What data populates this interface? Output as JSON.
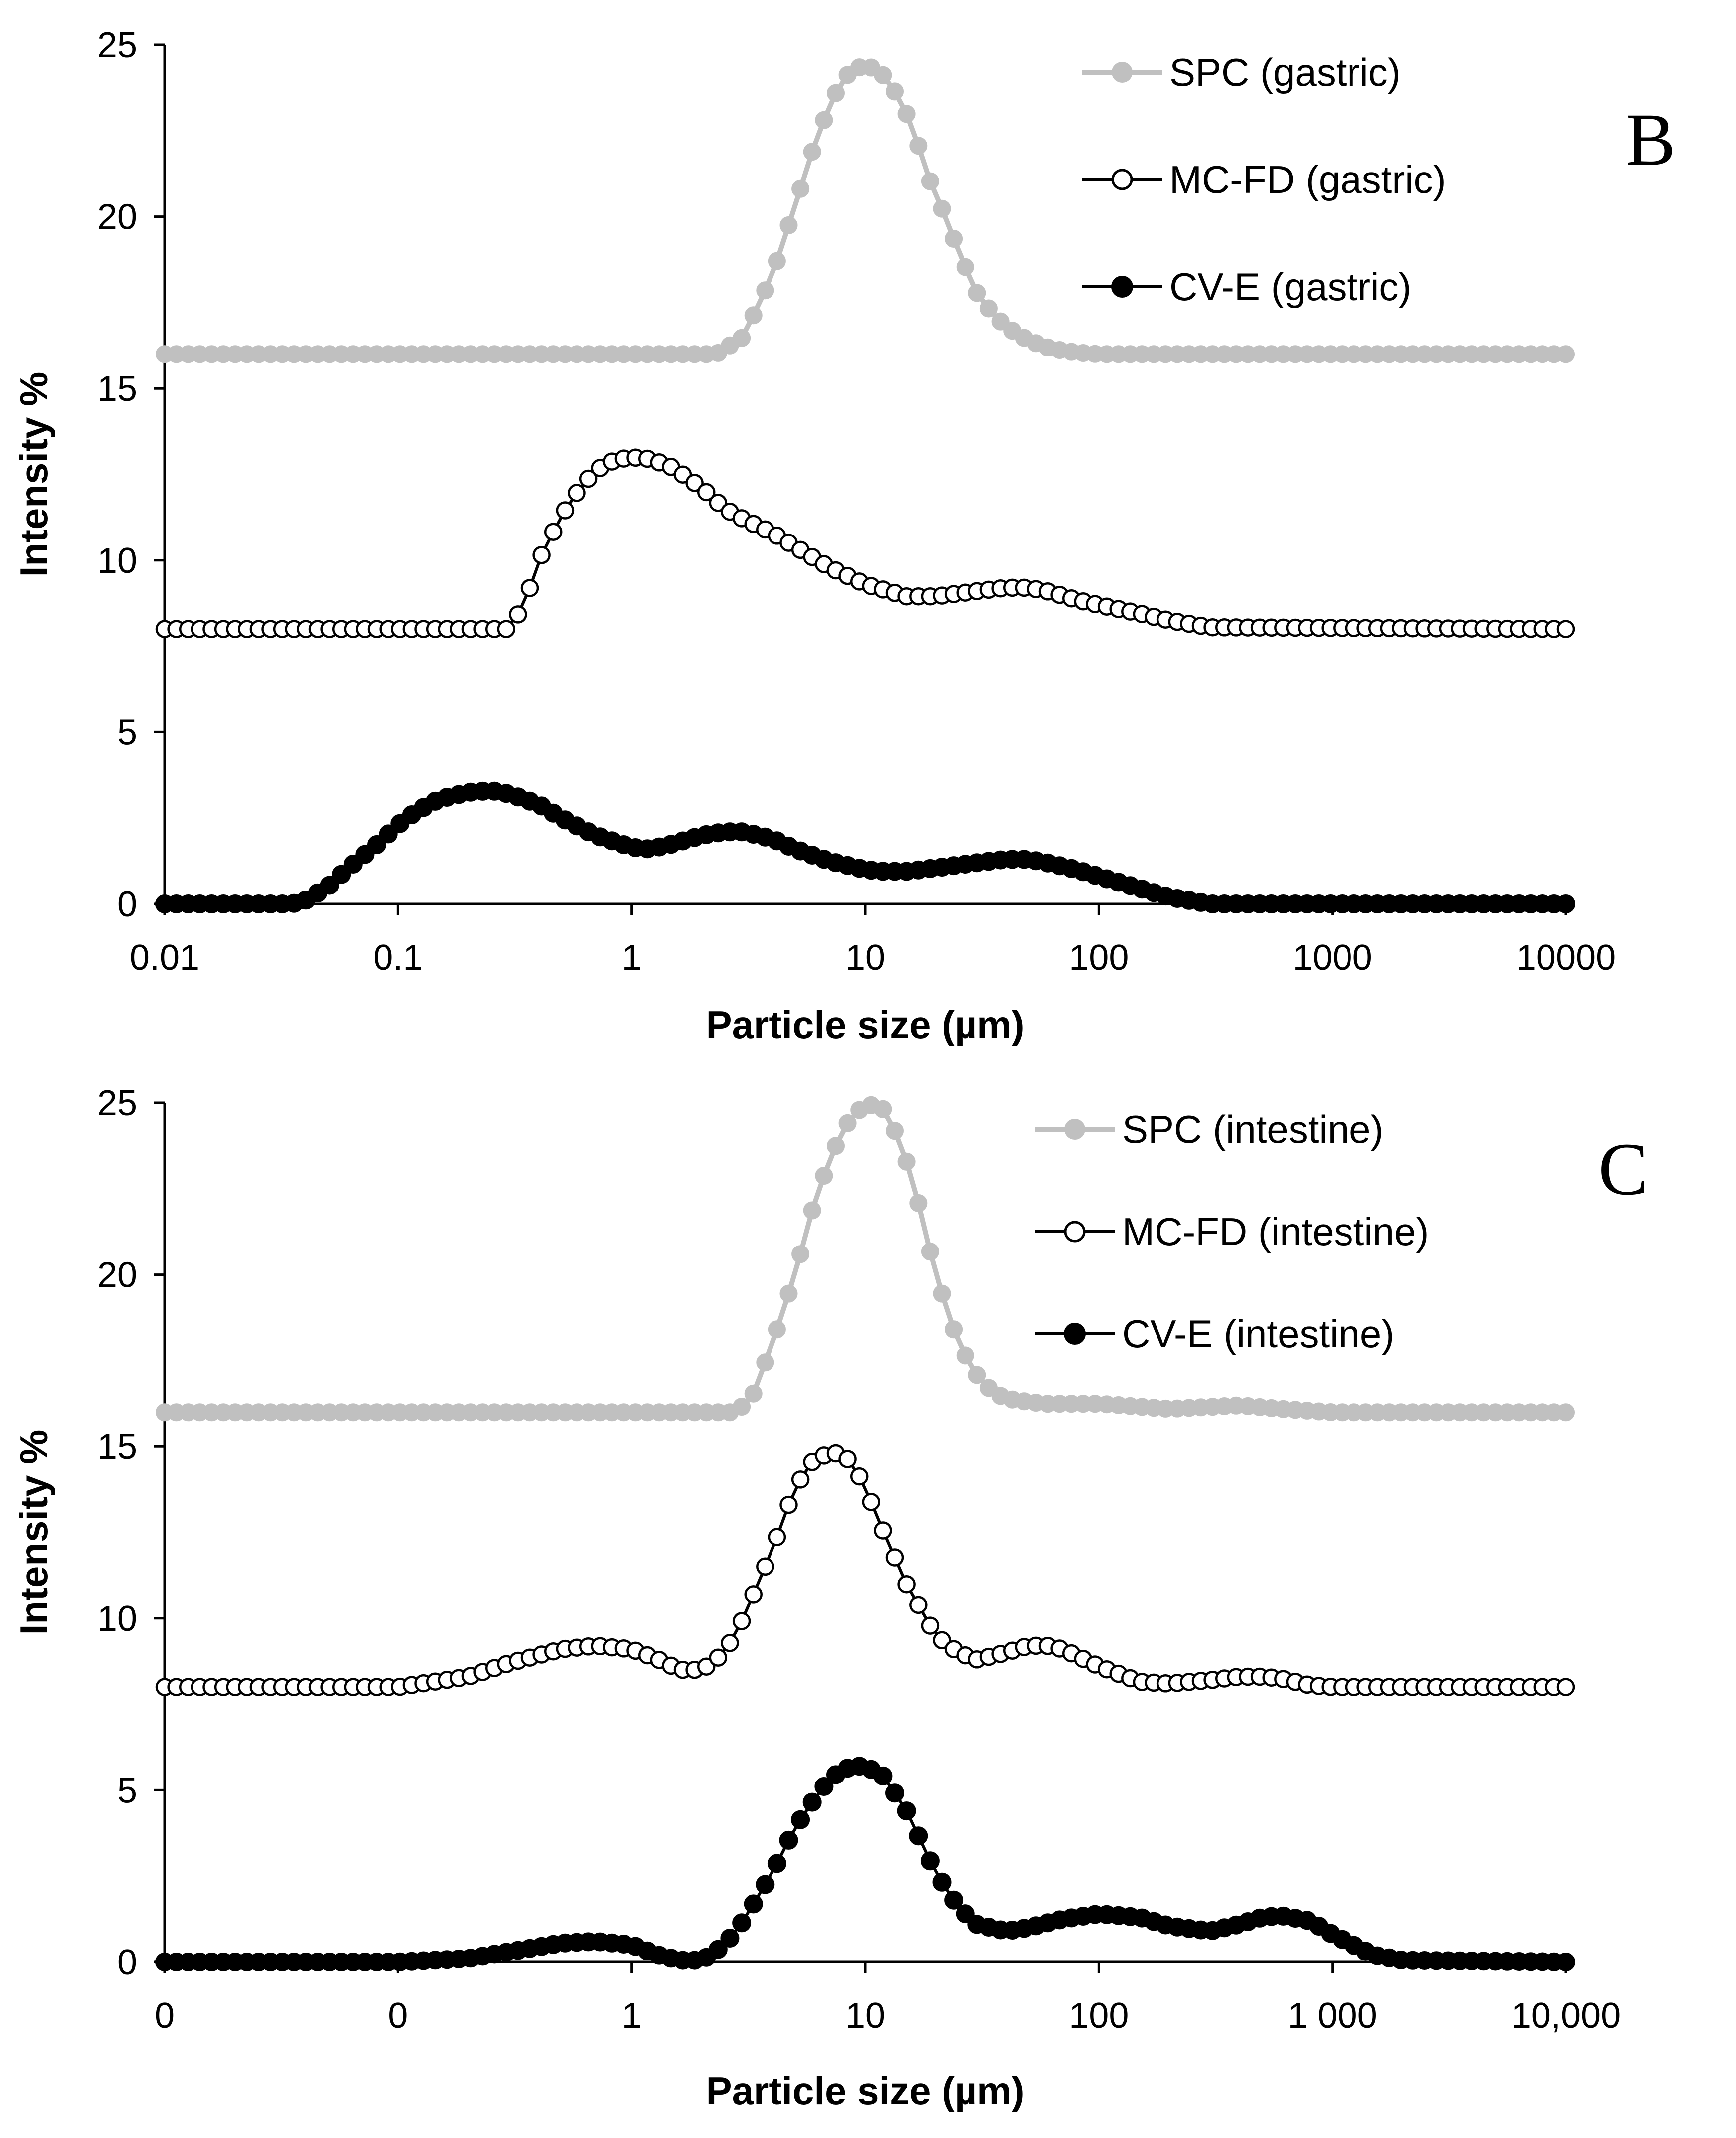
{
  "chart_data": [
    {
      "type": "line",
      "panel": "B",
      "title": "",
      "xlabel": "Particle size (µm)",
      "ylabel": "Intensity %",
      "xscale": "log",
      "xlim": [
        0.01,
        10000
      ],
      "ylim": [
        0,
        25
      ],
      "xticks": [
        0.01,
        0.1,
        1,
        10,
        100,
        1000,
        10000
      ],
      "xtick_labels": [
        "0.01",
        "0.1",
        "1",
        "10",
        "100",
        "1000",
        "10000"
      ],
      "yticks": [
        0,
        5,
        10,
        15,
        20,
        25
      ],
      "ytick_labels": [
        "0",
        "5",
        "10",
        "15",
        "20",
        "25"
      ],
      "legend_position": "top-right",
      "series": [
        {
          "name": "SPC (gastric)",
          "style": "gray-filled",
          "color": "#c0c0c0",
          "baseline": 16,
          "x": [
            0.01,
            2.3,
            3,
            4,
            5,
            6,
            7,
            8,
            9,
            10,
            11,
            12,
            13,
            15,
            17,
            19,
            22,
            25,
            30,
            35,
            40,
            50,
            60,
            70,
            80,
            90,
            100,
            10000
          ],
          "y": [
            16,
            16,
            16.5,
            18.3,
            20.3,
            22,
            23.2,
            24,
            24.3,
            24.4,
            24.3,
            24.1,
            23.8,
            23,
            22,
            21,
            20,
            19,
            17.8,
            17.2,
            16.8,
            16.4,
            16.2,
            16.1,
            16.05,
            16.02,
            16,
            16
          ]
        },
        {
          "name": "MC-FD (gastric)",
          "style": "open-circle",
          "color": "#000000",
          "baseline": 8,
          "x": [
            0.01,
            0.3,
            0.35,
            0.4,
            0.5,
            0.6,
            0.7,
            0.8,
            0.9,
            1,
            1.2,
            1.5,
            2,
            2.5,
            3,
            4,
            5,
            7,
            10,
            15,
            20,
            30,
            40,
            50,
            60,
            80,
            100,
            150,
            200,
            300,
            10000
          ],
          "y": [
            8,
            8,
            8.8,
            10,
            11.3,
            12.1,
            12.6,
            12.85,
            12.95,
            13,
            12.95,
            12.7,
            12.1,
            11.5,
            11.2,
            10.8,
            10.4,
            9.8,
            9.3,
            8.95,
            8.95,
            9.1,
            9.2,
            9.2,
            9.1,
            8.85,
            8.7,
            8.45,
            8.25,
            8.05,
            8
          ]
        },
        {
          "name": "CV-E (gastric)",
          "style": "filled-circle",
          "color": "#000000",
          "baseline": 0,
          "x": [
            0.01,
            0.035,
            0.04,
            0.05,
            0.06,
            0.08,
            0.1,
            0.12,
            0.15,
            0.2,
            0.25,
            0.3,
            0.4,
            0.5,
            0.7,
            1,
            1.2,
            1.5,
            2,
            2.5,
            3,
            4,
            5,
            7,
            10,
            12,
            15,
            20,
            30,
            40,
            50,
            60,
            80,
            100,
            150,
            200,
            300,
            10000
          ],
          "y": [
            0,
            0,
            0.1,
            0.5,
            1,
            1.7,
            2.3,
            2.7,
            3.05,
            3.25,
            3.3,
            3.2,
            2.9,
            2.5,
            2.0,
            1.65,
            1.6,
            1.75,
            2.0,
            2.1,
            2.1,
            1.9,
            1.6,
            1.25,
            1.0,
            0.95,
            0.95,
            1.05,
            1.2,
            1.3,
            1.3,
            1.2,
            1.0,
            0.8,
            0.45,
            0.2,
            0,
            0
          ]
        }
      ]
    },
    {
      "type": "line",
      "panel": "C",
      "title": "",
      "xlabel": "Particle size (µm)",
      "ylabel": "Intensity %",
      "xscale": "log",
      "xlim": [
        0.01,
        10000
      ],
      "ylim": [
        0,
        25
      ],
      "xticks": [
        0.01,
        0.1,
        1,
        10,
        100,
        1000,
        10000
      ],
      "xtick_labels": [
        "0",
        "0",
        "1",
        "10",
        "100",
        "1 000",
        "10,000"
      ],
      "yticks": [
        0,
        5,
        10,
        15,
        20,
        25
      ],
      "ytick_labels": [
        "0",
        "5",
        "10",
        "15",
        "20",
        "25"
      ],
      "legend_position": "top-right",
      "series": [
        {
          "name": "SPC (intestine)",
          "style": "gray-filled",
          "color": "#c0c0c0",
          "baseline": 16,
          "x": [
            0.01,
            2.8,
            3.3,
            4,
            5,
            6,
            7,
            8,
            9,
            10,
            11,
            12,
            13,
            15,
            17,
            20,
            25,
            30,
            35,
            40,
            50,
            60,
            100,
            200,
            400,
            600,
            1000,
            10000
          ],
          "y": [
            16,
            16,
            16.5,
            18,
            20,
            22,
            23.3,
            24.2,
            24.7,
            24.9,
            24.95,
            24.8,
            24.4,
            23.3,
            22,
            20,
            18,
            17.1,
            16.6,
            16.4,
            16.3,
            16.25,
            16.25,
            16.1,
            16.2,
            16.1,
            16.0,
            16
          ]
        },
        {
          "name": "MC-FD (intestine)",
          "style": "open-circle",
          "color": "#000000",
          "baseline": 8,
          "x": [
            0.01,
            0.1,
            0.2,
            0.3,
            0.5,
            0.7,
            1,
            1.3,
            1.6,
            2,
            2.5,
            3,
            4,
            5,
            6,
            7,
            8,
            9,
            10,
            12,
            15,
            20,
            25,
            30,
            35,
            40,
            50,
            60,
            70,
            100,
            150,
            200,
            300,
            400,
            500,
            600,
            800,
            1000,
            10000
          ],
          "y": [
            8,
            8,
            8.3,
            8.7,
            9.1,
            9.2,
            9.1,
            8.8,
            8.5,
            8.5,
            9.0,
            10.0,
            12.0,
            13.8,
            14.6,
            14.8,
            14.8,
            14.4,
            13.8,
            12.5,
            11,
            9.5,
            9.0,
            8.8,
            8.9,
            9.0,
            9.2,
            9.2,
            9.1,
            8.6,
            8.15,
            8.1,
            8.2,
            8.3,
            8.3,
            8.25,
            8.05,
            8.0,
            8
          ]
        },
        {
          "name": "CV-E (intestine)",
          "style": "filled-circle",
          "color": "#000000",
          "baseline": 0,
          "x": [
            0.01,
            0.1,
            0.2,
            0.3,
            0.5,
            0.7,
            1,
            1.3,
            1.6,
            2,
            2.5,
            3,
            4,
            5,
            6,
            7,
            8,
            9,
            10,
            12,
            15,
            20,
            25,
            30,
            40,
            50,
            70,
            100,
            150,
            200,
            300,
            400,
            500,
            600,
            800,
            1000,
            1500,
            2000,
            10000
          ],
          "y": [
            0,
            0,
            0.1,
            0.3,
            0.55,
            0.6,
            0.5,
            0.2,
            0.05,
            0.05,
            0.5,
            1.2,
            2.6,
            3.9,
            4.7,
            5.3,
            5.6,
            5.7,
            5.7,
            5.4,
            4.4,
            2.6,
            1.6,
            1.1,
            0.9,
            1.0,
            1.25,
            1.4,
            1.3,
            1.05,
            0.9,
            1.1,
            1.3,
            1.35,
            1.2,
            0.8,
            0.2,
            0.05,
            0
          ]
        }
      ]
    }
  ]
}
